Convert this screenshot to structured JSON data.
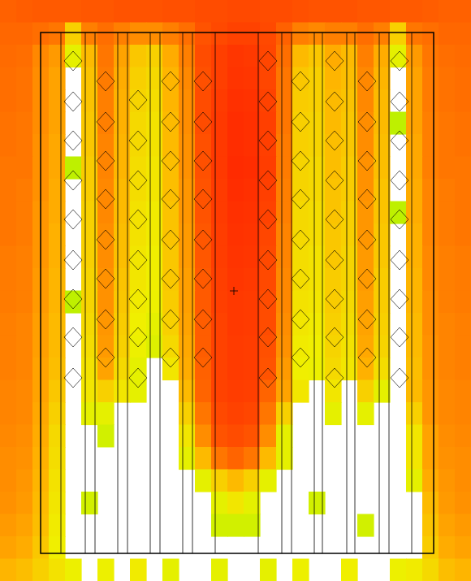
{
  "chart_data": {
    "type": "heatmap",
    "tick_labels": false,
    "xlim": [
      0,
      58
    ],
    "ylim": [
      0,
      71.5
    ],
    "zlim": [
      0,
      10
    ],
    "x": [
      1,
      3,
      5,
      7,
      9,
      11,
      13,
      15,
      17,
      19,
      21,
      23,
      25,
      27,
      29,
      31,
      33,
      35,
      37,
      39,
      41,
      43,
      45,
      47,
      49,
      51,
      53,
      55,
      57
    ],
    "y": [
      1.375,
      4.125,
      6.875,
      9.625,
      12.375,
      15.125,
      17.875,
      20.625,
      23.375,
      26.125,
      28.875,
      31.625,
      34.375,
      37.125,
      39.875,
      42.625,
      45.375,
      48.125,
      50.875,
      53.625,
      56.375,
      59.125,
      61.875,
      64.625,
      67.375,
      70.125
    ],
    "cells": [
      [
        7.6,
        7.7,
        7.8,
        7.8,
        7.8,
        7.9,
        7.9,
        8,
        8,
        8,
        8.1,
        8.1,
        8.2,
        8.2,
        8.3,
        8.3,
        8.2,
        8.2,
        8.1,
        8,
        8,
        8,
        7.9,
        7.9,
        7.8,
        7.8,
        7.7,
        7.6,
        7.6
      ],
      [
        7.4,
        7.4,
        7.2,
        7,
        5,
        6.8,
        7.2,
        6.8,
        6.5,
        6.5,
        6.8,
        7.2,
        8,
        8.3,
        8.5,
        8.5,
        8.3,
        7.6,
        6.8,
        6.6,
        6.8,
        6.8,
        7.2,
        6.8,
        5,
        7,
        7.2,
        7.4,
        7.4
      ],
      [
        7.3,
        7.2,
        6.6,
        6.2,
        4,
        5.5,
        7,
        6,
        5.2,
        5,
        5.8,
        6.8,
        8.2,
        8.6,
        9,
        8.9,
        8.4,
        7.2,
        5.5,
        5.2,
        5.8,
        5.5,
        6.8,
        5.8,
        4,
        6.2,
        7,
        7.2,
        7.3
      ],
      [
        7.2,
        7.1,
        6.5,
        6,
        null,
        5.3,
        6.9,
        5.8,
        5,
        4.8,
        5.6,
        6.6,
        8.1,
        8.6,
        9.1,
        9,
        8.4,
        7,
        5.2,
        5,
        5.6,
        5.4,
        6.6,
        5.6,
        null,
        6,
        6.9,
        7.1,
        7.2
      ],
      [
        7.2,
        7.1,
        6.5,
        6,
        null,
        5.3,
        6.8,
        5.7,
        4.9,
        4.7,
        5.6,
        6.5,
        8.2,
        8.8,
        9.3,
        9.2,
        8.5,
        7,
        5.1,
        5,
        5.5,
        5.3,
        6.6,
        5.5,
        null,
        6,
        6.9,
        7.1,
        7.2
      ],
      [
        7.1,
        7,
        6.5,
        6,
        null,
        5.2,
        6.8,
        5.7,
        4.8,
        4.6,
        5.5,
        6.5,
        8.2,
        8.9,
        9.4,
        9.3,
        8.6,
        7,
        5,
        4.9,
        5.5,
        5.2,
        6.5,
        5.5,
        3,
        6,
        6.8,
        7,
        7.1
      ],
      [
        7.1,
        7,
        6.4,
        5.9,
        null,
        5.2,
        6.7,
        5.6,
        4.8,
        4.6,
        5.5,
        6.4,
        8.1,
        8.9,
        9.4,
        9.3,
        8.6,
        6.9,
        5,
        4.9,
        5.4,
        5.2,
        6.5,
        5.4,
        null,
        5.9,
        6.8,
        7,
        7.1
      ],
      [
        7,
        7,
        6.4,
        5.9,
        3,
        5.1,
        6.7,
        5.6,
        4.7,
        4.5,
        5.4,
        6.4,
        8.1,
        8.9,
        9.5,
        9.4,
        8.7,
        6.9,
        4.9,
        4.8,
        5.4,
        5.1,
        6.4,
        5.4,
        null,
        5.9,
        6.8,
        7,
        7
      ],
      [
        7,
        6.9,
        6.4,
        5.8,
        null,
        5.1,
        6.6,
        5.5,
        4.7,
        4.5,
        5.4,
        6.3,
        8,
        8.8,
        9.4,
        9.3,
        8.6,
        6.8,
        4.9,
        4.8,
        5.3,
        5.1,
        6.4,
        5.3,
        null,
        5.8,
        6.7,
        6.9,
        7
      ],
      [
        7,
        6.9,
        6.3,
        5.8,
        null,
        5,
        6.6,
        5.5,
        4.6,
        4.4,
        5.3,
        6.3,
        8,
        8.8,
        9.3,
        9.2,
        8.5,
        6.8,
        4.8,
        4.7,
        5.3,
        5,
        6.3,
        5.3,
        3,
        5.8,
        6.7,
        6.9,
        7
      ],
      [
        7,
        6.9,
        6.3,
        5.7,
        null,
        5,
        6.5,
        5.4,
        4.6,
        4.4,
        5.3,
        6.2,
        7.9,
        8.7,
        9.2,
        9.1,
        8.4,
        6.7,
        4.8,
        4.7,
        5.2,
        5,
        6.3,
        5.2,
        null,
        5.7,
        6.7,
        6.9,
        7
      ],
      [
        6.9,
        6.8,
        6.3,
        5.7,
        null,
        5,
        6.5,
        5.4,
        4.5,
        4.3,
        5.2,
        6.2,
        7.9,
        8.7,
        9.1,
        9,
        8.3,
        6.7,
        4.7,
        4.6,
        5.2,
        4.9,
        6.2,
        5.2,
        null,
        5.7,
        6.6,
        6.8,
        6.9
      ],
      [
        6.9,
        6.8,
        6.2,
        5.6,
        null,
        4.9,
        6.4,
        5.3,
        4.5,
        4.3,
        5.2,
        6.1,
        7.8,
        8.6,
        9,
        8.9,
        8.3,
        6.6,
        4.7,
        4.6,
        5.1,
        4.9,
        6.2,
        5.1,
        null,
        5.6,
        6.6,
        6.8,
        6.9
      ],
      [
        6.9,
        6.8,
        6.2,
        5.6,
        3,
        4.9,
        6.4,
        5.2,
        4.4,
        4.2,
        5.1,
        6.1,
        7.8,
        8.6,
        8.9,
        8.8,
        8.2,
        6.6,
        4.6,
        4.5,
        5.1,
        4.8,
        6.1,
        5.1,
        null,
        5.6,
        6.5,
        6.8,
        6.9
      ],
      [
        6.8,
        6.7,
        6.1,
        5.5,
        null,
        4.8,
        6.3,
        5.1,
        4.3,
        4,
        5,
        6,
        7.7,
        8.5,
        8.9,
        8.8,
        8.2,
        6.5,
        4.5,
        4.4,
        5,
        4.7,
        6,
        5,
        null,
        5.5,
        6.5,
        6.7,
        6.8
      ],
      [
        6.8,
        6.7,
        6.1,
        5.5,
        null,
        4.7,
        6.2,
        5,
        4.2,
        3.8,
        4.8,
        5.9,
        7.7,
        8.5,
        8.8,
        8.7,
        8.1,
        6.4,
        4.4,
        4.3,
        4.9,
        4.6,
        5.9,
        4.9,
        null,
        5.5,
        6.4,
        6.7,
        6.8
      ],
      [
        6.8,
        6.7,
        6,
        5.4,
        null,
        4.6,
        6,
        4.8,
        4,
        null,
        4.5,
        5.8,
        7.6,
        8.5,
        8.8,
        8.7,
        8,
        6.2,
        4.3,
        4.2,
        4.8,
        4.5,
        5.7,
        4.7,
        null,
        5.4,
        6.4,
        6.7,
        6.8
      ],
      [
        6.7,
        6.6,
        6,
        5.2,
        null,
        4.5,
        5,
        4.5,
        4,
        null,
        null,
        5.5,
        7.5,
        8.5,
        8.7,
        8.6,
        7.5,
        6,
        4.5,
        null,
        4.5,
        null,
        5,
        4,
        null,
        5.5,
        6.3,
        6.6,
        6.7
      ],
      [
        6.7,
        6.6,
        5.9,
        5,
        null,
        4,
        4,
        null,
        null,
        null,
        null,
        5,
        7,
        8.3,
        8.5,
        8.4,
        7,
        5,
        null,
        null,
        4,
        null,
        4,
        null,
        null,
        5,
        6.3,
        6.6,
        6.7
      ],
      [
        6.6,
        6.5,
        5.8,
        4.8,
        null,
        null,
        3.5,
        null,
        null,
        null,
        null,
        4.5,
        6.5,
        8,
        8.2,
        8,
        6.5,
        4,
        null,
        null,
        null,
        null,
        null,
        null,
        null,
        4.5,
        6,
        6.5,
        6.6
      ],
      [
        6.5,
        6.4,
        5.7,
        4.7,
        null,
        null,
        null,
        null,
        null,
        null,
        null,
        4,
        5.5,
        7,
        7.5,
        7,
        5.5,
        4,
        null,
        null,
        null,
        null,
        null,
        null,
        null,
        4.5,
        6,
        6.4,
        6.5
      ],
      [
        6.5,
        6.3,
        5.6,
        4.6,
        null,
        null,
        null,
        null,
        null,
        null,
        null,
        null,
        4,
        5,
        5.5,
        5,
        4,
        null,
        null,
        null,
        null,
        null,
        null,
        null,
        null,
        4,
        5.8,
        6.3,
        6.5
      ],
      [
        6.4,
        6.2,
        5.5,
        4.5,
        null,
        3.5,
        null,
        null,
        null,
        null,
        null,
        null,
        null,
        4,
        4.5,
        4,
        null,
        null,
        null,
        3.5,
        null,
        null,
        null,
        null,
        null,
        null,
        5.5,
        6.2,
        6.4
      ],
      [
        6.2,
        6,
        5.4,
        4.4,
        null,
        null,
        null,
        null,
        null,
        null,
        null,
        null,
        null,
        3.5,
        3.5,
        3.5,
        null,
        null,
        null,
        null,
        null,
        null,
        3.5,
        null,
        null,
        null,
        5.3,
        6,
        6.2
      ],
      [
        6,
        5.8,
        5.2,
        4.3,
        null,
        null,
        null,
        null,
        null,
        null,
        null,
        null,
        null,
        null,
        null,
        null,
        null,
        null,
        null,
        null,
        null,
        null,
        null,
        null,
        null,
        null,
        5.1,
        5.8,
        6
      ],
      [
        5.6,
        5.4,
        5,
        4.6,
        4.2,
        null,
        4.2,
        null,
        4.4,
        null,
        4,
        null,
        null,
        4,
        null,
        null,
        4,
        null,
        4.2,
        null,
        null,
        4.3,
        null,
        null,
        4.2,
        4.4,
        4.8,
        5.4,
        5.6
      ]
    ],
    "frame": {
      "x": [
        5,
        53.4
      ],
      "y": [
        4,
        68.1
      ]
    },
    "lines": [
      7.5,
      10.5,
      11.7,
      14.5,
      15.7,
      18.5,
      19.7,
      22.5,
      23.7,
      26.5,
      31.8,
      34.7,
      35.9,
      38.7,
      39.7,
      42.7,
      43.7,
      46.7,
      47.9,
      50.7
    ],
    "center": [
      28.8,
      35.8
    ],
    "marker": "diamond",
    "markers": [
      [
        9,
        7.5
      ],
      [
        9,
        12.5
      ],
      [
        9,
        17.3
      ],
      [
        9,
        22.2
      ],
      [
        9,
        27
      ],
      [
        9,
        32
      ],
      [
        9,
        36.8
      ],
      [
        9,
        41.5
      ],
      [
        9,
        46.5
      ],
      [
        17,
        12.3
      ],
      [
        17,
        17.3
      ],
      [
        17,
        22.2
      ],
      [
        17,
        27
      ],
      [
        17,
        32
      ],
      [
        17,
        36.8
      ],
      [
        17,
        41.5
      ],
      [
        17,
        46.5
      ],
      [
        33,
        7.5
      ],
      [
        33,
        12.5
      ],
      [
        33,
        17.3
      ],
      [
        33,
        22.2
      ],
      [
        33,
        27
      ],
      [
        33,
        32
      ],
      [
        33,
        36.8
      ],
      [
        33,
        41.5
      ],
      [
        33,
        46.5
      ],
      [
        41.2,
        7.5
      ],
      [
        41.2,
        12.5
      ],
      [
        41.2,
        17.3
      ],
      [
        41.2,
        22.2
      ],
      [
        41.2,
        27
      ],
      [
        41.2,
        32
      ],
      [
        41.2,
        36.8
      ],
      [
        41.2,
        41.5
      ],
      [
        41.2,
        46.5
      ],
      [
        49.2,
        7.5
      ],
      [
        49.2,
        12.5
      ],
      [
        49.2,
        17.3
      ],
      [
        49.2,
        22.2
      ],
      [
        49.2,
        27
      ],
      [
        49.2,
        32
      ],
      [
        49.2,
        36.8
      ],
      [
        49.2,
        41.5
      ],
      [
        49.2,
        46.5
      ],
      [
        13,
        10
      ],
      [
        13,
        15
      ],
      [
        13,
        19.8
      ],
      [
        13,
        24.5
      ],
      [
        13,
        29.5
      ],
      [
        13,
        34.3
      ],
      [
        13,
        39.3
      ],
      [
        13,
        44
      ],
      [
        21,
        10
      ],
      [
        21,
        15
      ],
      [
        21,
        19.8
      ],
      [
        21,
        24.5
      ],
      [
        21,
        29.5
      ],
      [
        21,
        34.3
      ],
      [
        21,
        39.3
      ],
      [
        21,
        44
      ],
      [
        25,
        10
      ],
      [
        25,
        15
      ],
      [
        25,
        19.8
      ],
      [
        25,
        24.5
      ],
      [
        25,
        29.5
      ],
      [
        25,
        34.3
      ],
      [
        25,
        39.3
      ],
      [
        25,
        44
      ],
      [
        37,
        10
      ],
      [
        37,
        15
      ],
      [
        37,
        19.8
      ],
      [
        37,
        24.5
      ],
      [
        37,
        29.5
      ],
      [
        37,
        34.3
      ],
      [
        37,
        39.3
      ],
      [
        37,
        44
      ],
      [
        45.2,
        10
      ],
      [
        45.2,
        15
      ],
      [
        45.2,
        19.8
      ],
      [
        45.2,
        24.5
      ],
      [
        45.2,
        29.5
      ],
      [
        45.2,
        34.3
      ],
      [
        45.2,
        39.3
      ],
      [
        45.2,
        44
      ]
    ]
  }
}
